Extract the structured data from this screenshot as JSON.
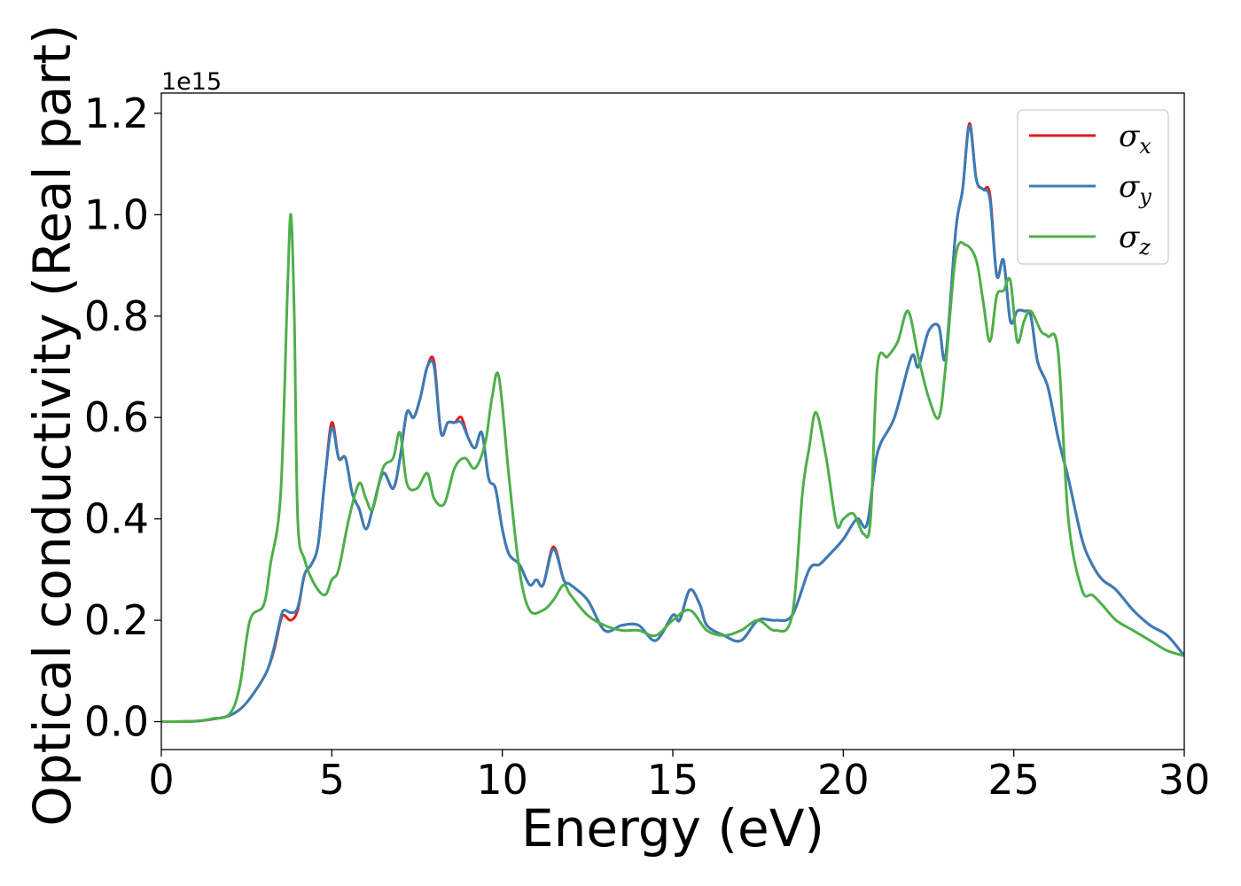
{
  "chart_data": {
    "type": "line",
    "xlabel": "Energy (eV)",
    "ylabel": "Optical conductivity (Real part)",
    "y_offset_label": "1e15",
    "xlim": [
      0,
      30
    ],
    "ylim": [
      -0.055,
      1.24
    ],
    "xticks": [
      0,
      5,
      10,
      15,
      20,
      25,
      30
    ],
    "xtick_labels": [
      "0",
      "5",
      "10",
      "15",
      "20",
      "25",
      "30"
    ],
    "yticks": [
      0.0,
      0.2,
      0.4,
      0.6,
      0.8,
      1.0,
      1.2
    ],
    "ytick_labels": [
      "0.0",
      "0.2",
      "0.4",
      "0.6",
      "0.8",
      "1.0",
      "1.2"
    ],
    "grid": false,
    "legend_position": "top-right",
    "series": [
      {
        "name": "σx",
        "sym": "σ",
        "sub": "x",
        "color": "#e41a1c",
        "x": [
          0,
          1,
          1.5,
          2,
          2.4,
          2.8,
          3.1,
          3.3,
          3.5,
          3.6,
          3.8,
          4.0,
          4.2,
          4.4,
          4.6,
          4.8,
          5.0,
          5.2,
          5.4,
          5.6,
          5.8,
          6.0,
          6.2,
          6.5,
          6.8,
          7.0,
          7.2,
          7.4,
          7.6,
          7.8,
          8.0,
          8.2,
          8.4,
          8.6,
          8.8,
          9.0,
          9.2,
          9.4,
          9.6,
          9.8,
          10.0,
          10.2,
          10.5,
          10.8,
          11.0,
          11.2,
          11.5,
          11.8,
          12.0,
          12.5,
          13.0,
          13.5,
          14.0,
          14.5,
          15.0,
          15.2,
          15.5,
          15.8,
          16.0,
          16.5,
          17.0,
          17.5,
          18.0,
          18.5,
          19.0,
          19.3,
          19.6,
          20.0,
          20.4,
          20.7,
          21.0,
          21.5,
          22.0,
          22.2,
          22.5,
          22.8,
          23.0,
          23.3,
          23.5,
          23.7,
          23.9,
          24.1,
          24.3,
          24.5,
          24.7,
          24.9,
          25.1,
          25.3,
          25.5,
          25.7,
          26.0,
          26.3,
          26.6,
          27.0,
          27.3,
          27.6,
          28.0,
          28.5,
          29.0,
          29.5,
          30.0
        ],
        "values": [
          0,
          0.001,
          0.005,
          0.012,
          0.03,
          0.065,
          0.1,
          0.14,
          0.2,
          0.21,
          0.2,
          0.22,
          0.29,
          0.31,
          0.35,
          0.48,
          0.59,
          0.52,
          0.52,
          0.45,
          0.42,
          0.38,
          0.42,
          0.49,
          0.46,
          0.52,
          0.61,
          0.6,
          0.64,
          0.7,
          0.71,
          0.57,
          0.59,
          0.59,
          0.6,
          0.56,
          0.54,
          0.57,
          0.48,
          0.46,
          0.38,
          0.33,
          0.31,
          0.27,
          0.28,
          0.27,
          0.345,
          0.28,
          0.27,
          0.24,
          0.18,
          0.19,
          0.19,
          0.16,
          0.21,
          0.2,
          0.26,
          0.23,
          0.19,
          0.17,
          0.16,
          0.2,
          0.2,
          0.21,
          0.3,
          0.31,
          0.33,
          0.36,
          0.4,
          0.39,
          0.53,
          0.6,
          0.72,
          0.7,
          0.77,
          0.78,
          0.72,
          0.97,
          1.05,
          1.18,
          1.07,
          1.05,
          1.04,
          0.88,
          0.91,
          0.79,
          0.81,
          0.81,
          0.8,
          0.71,
          0.66,
          0.56,
          0.48,
          0.36,
          0.31,
          0.28,
          0.26,
          0.22,
          0.19,
          0.17,
          0.13
        ]
      },
      {
        "name": "σy",
        "sym": "σ",
        "sub": "y",
        "color": "#377eb8",
        "x": [
          0,
          1,
          1.5,
          2,
          2.4,
          2.8,
          3.1,
          3.3,
          3.5,
          3.6,
          3.8,
          4.0,
          4.2,
          4.4,
          4.6,
          4.8,
          5.0,
          5.2,
          5.4,
          5.6,
          5.8,
          6.0,
          6.2,
          6.5,
          6.8,
          7.0,
          7.2,
          7.4,
          7.6,
          7.8,
          8.0,
          8.2,
          8.4,
          8.6,
          8.8,
          9.0,
          9.2,
          9.4,
          9.6,
          9.8,
          10.0,
          10.2,
          10.5,
          10.8,
          11.0,
          11.2,
          11.5,
          11.8,
          12.0,
          12.5,
          13.0,
          13.5,
          14.0,
          14.5,
          15.0,
          15.2,
          15.5,
          15.8,
          16.0,
          16.5,
          17.0,
          17.5,
          18.0,
          18.5,
          19.0,
          19.3,
          19.6,
          20.0,
          20.4,
          20.7,
          21.0,
          21.5,
          22.0,
          22.2,
          22.5,
          22.8,
          23.0,
          23.3,
          23.5,
          23.7,
          23.9,
          24.1,
          24.3,
          24.5,
          24.7,
          24.9,
          25.1,
          25.3,
          25.5,
          25.7,
          26.0,
          26.3,
          26.6,
          27.0,
          27.3,
          27.6,
          28.0,
          28.5,
          29.0,
          29.5,
          30.0
        ],
        "values": [
          0,
          0.001,
          0.005,
          0.012,
          0.03,
          0.065,
          0.1,
          0.145,
          0.205,
          0.22,
          0.215,
          0.225,
          0.29,
          0.31,
          0.35,
          0.48,
          0.58,
          0.52,
          0.52,
          0.45,
          0.42,
          0.38,
          0.42,
          0.49,
          0.46,
          0.52,
          0.61,
          0.6,
          0.64,
          0.7,
          0.7,
          0.57,
          0.59,
          0.59,
          0.59,
          0.56,
          0.54,
          0.57,
          0.48,
          0.46,
          0.38,
          0.33,
          0.31,
          0.27,
          0.28,
          0.27,
          0.34,
          0.28,
          0.27,
          0.24,
          0.18,
          0.19,
          0.19,
          0.16,
          0.21,
          0.2,
          0.26,
          0.23,
          0.19,
          0.17,
          0.16,
          0.2,
          0.2,
          0.21,
          0.3,
          0.31,
          0.33,
          0.36,
          0.4,
          0.39,
          0.53,
          0.6,
          0.72,
          0.7,
          0.77,
          0.78,
          0.72,
          0.97,
          1.05,
          1.175,
          1.07,
          1.05,
          1.03,
          0.88,
          0.91,
          0.79,
          0.81,
          0.81,
          0.8,
          0.71,
          0.66,
          0.56,
          0.48,
          0.36,
          0.31,
          0.28,
          0.26,
          0.22,
          0.19,
          0.17,
          0.13
        ]
      },
      {
        "name": "σz",
        "sym": "σ",
        "sub": "z",
        "color": "#4daf4a",
        "x": [
          0,
          1,
          1.5,
          2,
          2.3,
          2.6,
          3.0,
          3.2,
          3.5,
          3.7,
          3.8,
          3.9,
          4.0,
          4.2,
          4.5,
          4.8,
          5.0,
          5.2,
          5.5,
          5.8,
          6.0,
          6.2,
          6.5,
          6.8,
          7.0,
          7.2,
          7.5,
          7.8,
          8.0,
          8.3,
          8.6,
          8.9,
          9.2,
          9.5,
          9.7,
          9.9,
          10.2,
          10.5,
          10.8,
          11.2,
          11.5,
          11.8,
          12.0,
          12.5,
          13.0,
          13.5,
          14.0,
          14.5,
          15.0,
          15.5,
          16.0,
          16.5,
          17.0,
          17.5,
          18.0,
          18.5,
          18.8,
          19.0,
          19.2,
          19.5,
          19.8,
          20.0,
          20.3,
          20.6,
          20.8,
          21.0,
          21.3,
          21.6,
          21.9,
          22.2,
          22.5,
          22.8,
          23.0,
          23.3,
          23.6,
          23.9,
          24.1,
          24.3,
          24.5,
          24.7,
          24.9,
          25.1,
          25.3,
          25.5,
          25.8,
          26.0,
          26.3,
          26.6,
          27.0,
          27.3,
          27.6,
          28.0,
          28.5,
          29.0,
          29.5,
          30.0
        ],
        "values": [
          0,
          0.001,
          0.006,
          0.015,
          0.07,
          0.2,
          0.23,
          0.31,
          0.45,
          0.85,
          1.0,
          0.8,
          0.4,
          0.32,
          0.27,
          0.25,
          0.28,
          0.3,
          0.4,
          0.47,
          0.44,
          0.42,
          0.5,
          0.52,
          0.57,
          0.47,
          0.46,
          0.49,
          0.44,
          0.43,
          0.5,
          0.52,
          0.5,
          0.55,
          0.64,
          0.68,
          0.48,
          0.3,
          0.22,
          0.22,
          0.24,
          0.27,
          0.25,
          0.21,
          0.19,
          0.18,
          0.18,
          0.17,
          0.2,
          0.22,
          0.18,
          0.17,
          0.18,
          0.2,
          0.18,
          0.21,
          0.45,
          0.54,
          0.61,
          0.52,
          0.39,
          0.4,
          0.41,
          0.37,
          0.4,
          0.7,
          0.72,
          0.75,
          0.81,
          0.72,
          0.64,
          0.6,
          0.7,
          0.92,
          0.94,
          0.91,
          0.83,
          0.75,
          0.84,
          0.85,
          0.87,
          0.75,
          0.79,
          0.81,
          0.77,
          0.76,
          0.73,
          0.4,
          0.26,
          0.25,
          0.23,
          0.2,
          0.18,
          0.16,
          0.14,
          0.13
        ]
      }
    ]
  }
}
